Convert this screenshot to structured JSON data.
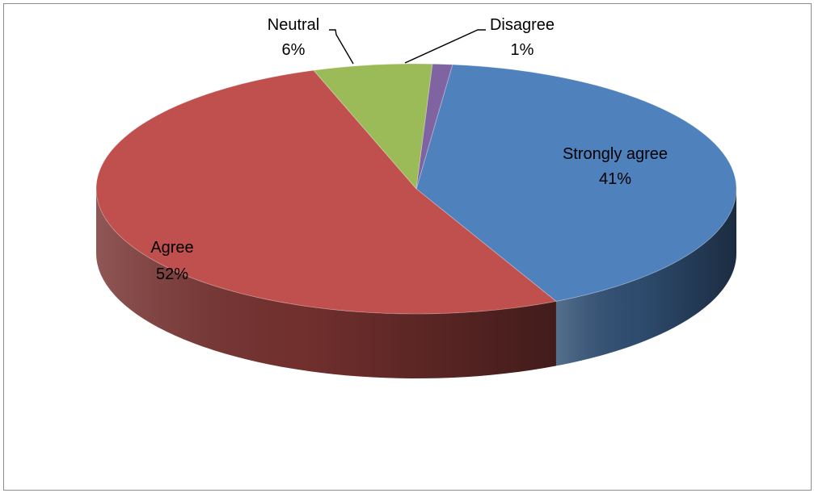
{
  "chart_data": {
    "type": "pie",
    "title": "",
    "slices": [
      {
        "label": "Strongly agree",
        "value": 41,
        "value_label": "41%",
        "color": "#4f81bd"
      },
      {
        "label": "Agree",
        "value": 52,
        "value_label": "52%",
        "color": "#c0504d"
      },
      {
        "label": "Neutral",
        "value": 6,
        "value_label": "6%",
        "color": "#9bbb59"
      },
      {
        "label": "Disagree",
        "value": 1,
        "value_label": "1%",
        "color": "#8064a2"
      }
    ],
    "style": "3d",
    "legend": "none",
    "data_labels": "category and percentage"
  }
}
